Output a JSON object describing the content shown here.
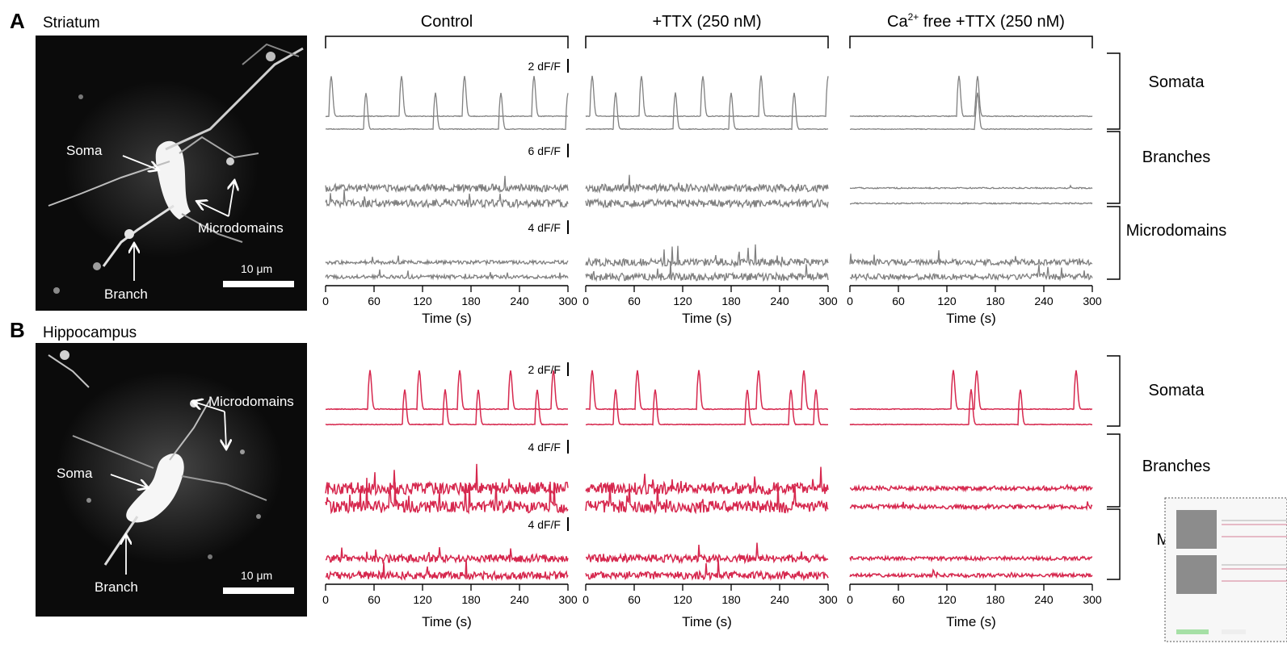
{
  "panels": [
    {
      "letter": "A",
      "region": "Striatum",
      "image_labels": {
        "soma": "Soma",
        "branch": "Branch",
        "microdomains": "Microdomains",
        "scale": "10 μm"
      },
      "trace_color": "#808080",
      "scalebars": [
        "2 dF/F",
        "6 dF/F",
        "4 dF/F"
      ],
      "row_labels": [
        "Somata",
        "Branches",
        "Microdomains"
      ]
    },
    {
      "letter": "B",
      "region": "Hippocampus",
      "image_labels": {
        "soma": "Soma",
        "branch": "Branch",
        "microdomains": "Microdomains",
        "scale": "10 μm"
      },
      "trace_color": "#d6284e",
      "scalebars": [
        "2 dF/F",
        "4 dF/F",
        "4 dF/F"
      ],
      "row_labels": [
        "Somata",
        "Branches",
        "Micro"
      ]
    }
  ],
  "conditions": [
    {
      "prefix": "Control",
      "sup": "",
      "suffix": ""
    },
    {
      "prefix": "+TTX (250 nM)",
      "sup": "",
      "suffix": ""
    },
    {
      "prefix": "Ca",
      "sup": "2+",
      "suffix": " free +TTX (250 nM)"
    }
  ],
  "x_axis": {
    "label": "Time (s)",
    "ticks": [
      0,
      60,
      120,
      180,
      240,
      300
    ],
    "range": [
      0,
      300
    ]
  },
  "chart_data": {
    "type": "line",
    "xlabel": "Time (s)",
    "xlim": [
      0,
      300
    ],
    "note_units": "dF/F",
    "peak_times_s": {
      "A_somata_control": [
        7,
        50,
        94,
        136,
        172,
        217,
        258,
        300
      ],
      "A_somata_ttx": [
        8,
        37,
        69,
        111,
        145,
        180,
        217,
        258,
        300
      ],
      "A_somata_cafree": [
        135,
        158
      ],
      "B_somata_control": [
        55,
        98,
        116,
        148,
        166,
        189,
        229,
        262,
        282
      ],
      "B_somata_ttx": [
        8,
        37,
        64,
        86,
        140,
        200,
        214,
        254,
        270,
        285
      ],
      "B_somata_cafree": [
        128,
        150,
        157,
        211,
        280
      ]
    }
  },
  "thumbnail": {
    "visible": true
  }
}
